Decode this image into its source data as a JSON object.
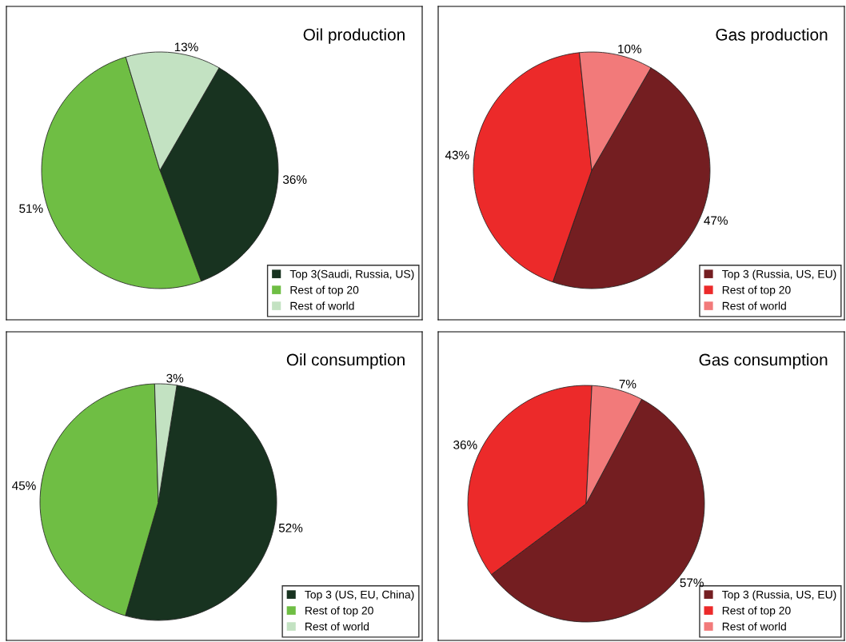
{
  "chart_data": [
    {
      "type": "pie",
      "title": "Oil production",
      "categories": [
        "Top 3(Saudi, Russia, US)",
        "Rest of top 20",
        "Rest of world"
      ],
      "values": [
        36,
        51,
        13
      ],
      "value_labels": [
        "36%",
        "51%",
        "13%"
      ],
      "colors": [
        "#183320",
        "#6fbe44",
        "#c3e2c2"
      ],
      "legend": "bottom right"
    },
    {
      "type": "pie",
      "title": "Gas production",
      "categories": [
        "Top 3 (Russia, US, EU)",
        "Rest of top 20",
        "Rest of world"
      ],
      "values": [
        47,
        43,
        10
      ],
      "value_labels": [
        "47%",
        "43%",
        "10%"
      ],
      "colors": [
        "#741e21",
        "#ec2a2a",
        "#f27a7a"
      ],
      "legend": "bottom right"
    },
    {
      "type": "pie",
      "title": "Oil consumption",
      "categories": [
        "Top 3 (US, EU, China)",
        "Rest of top 20",
        "Rest of world"
      ],
      "values": [
        52,
        45,
        3
      ],
      "value_labels": [
        "52%",
        "45%",
        "3%"
      ],
      "colors": [
        "#183320",
        "#6fbe44",
        "#c3e2c2"
      ],
      "legend": "bottom right"
    },
    {
      "type": "pie",
      "title": "Gas consumption",
      "categories": [
        "Top 3 (Russia, US, EU)",
        "Rest of top 20",
        "Rest of world"
      ],
      "values": [
        57,
        36,
        7
      ],
      "value_labels": [
        "57%",
        "36%",
        "7%"
      ],
      "colors": [
        "#741e21",
        "#ec2a2a",
        "#f27a7a"
      ],
      "legend": "bottom right"
    }
  ]
}
